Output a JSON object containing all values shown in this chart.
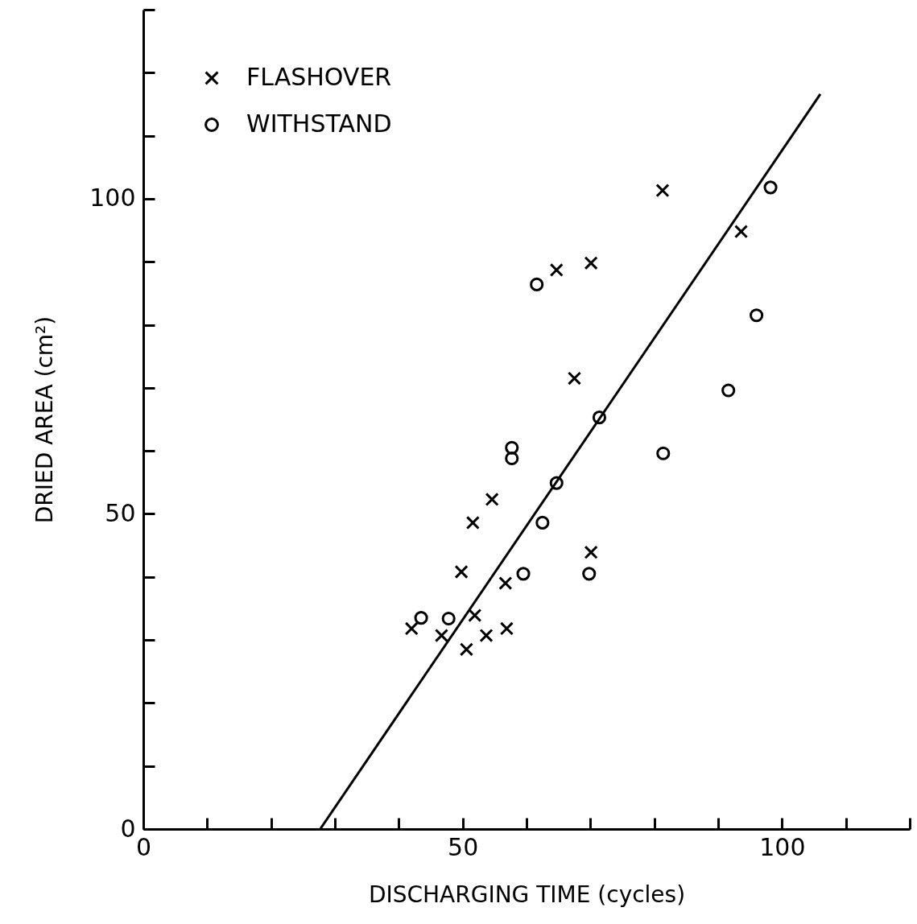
{
  "chart_data": {
    "type": "scatter",
    "xlabel": "DISCHARGING TIME (cycles)",
    "ylabel": "DRIED AREA (cm²)",
    "xlim": [
      0,
      120
    ],
    "ylim": [
      0,
      130
    ],
    "xticks": [
      0,
      {
        "value": 10,
        "label": null
      },
      {
        "value": 20,
        "label": null
      },
      {
        "value": 30,
        "label": null
      },
      {
        "value": 40,
        "label": null
      },
      50,
      {
        "value": 60,
        "label": null
      },
      {
        "value": 70,
        "label": null
      },
      {
        "value": 80,
        "label": null
      },
      {
        "value": 90,
        "label": null
      },
      100,
      {
        "value": 110,
        "label": null
      },
      {
        "value": 120,
        "label": null
      }
    ],
    "yticks": [
      0,
      {
        "value": 10,
        "label": null
      },
      {
        "value": 20,
        "label": null
      },
      {
        "value": 30,
        "label": null
      },
      {
        "value": 40,
        "label": null
      },
      50,
      {
        "value": 60,
        "label": null
      },
      {
        "value": 70,
        "label": null
      },
      {
        "value": 80,
        "label": null
      },
      {
        "value": 90,
        "label": null
      },
      100,
      {
        "value": 110,
        "label": null
      },
      {
        "value": 120,
        "label": null
      },
      {
        "value": 130,
        "label": null
      }
    ],
    "grid": false,
    "legend": "top left",
    "series": [
      {
        "name": "FLASHOVER",
        "color": "#000000",
        "marker": "cross",
        "x": [
          42.0,
          46.7,
          50.6,
          53.7,
          56.9,
          51.9,
          49.8,
          56.7,
          51.6,
          54.6,
          70.1,
          67.5,
          64.7,
          70.1,
          81.3,
          93.6
        ],
        "values": [
          31.8,
          30.7,
          28.5,
          30.7,
          31.8,
          33.9,
          40.8,
          39.0,
          48.6,
          52.3,
          43.9,
          71.5,
          88.7,
          89.8,
          101.3,
          94.8
        ]
      },
      {
        "name": "WITHSTAND",
        "color": "#000000",
        "marker": "circle",
        "x": [
          43.5,
          47.8,
          59.5,
          62.5,
          64.7,
          71.4,
          61.6,
          69.8,
          81.4,
          91.6,
          96.0,
          98.2,
          57.7,
          57.7
        ],
        "values": [
          33.5,
          33.4,
          40.5,
          48.6,
          54.9,
          65.3,
          86.4,
          40.5,
          59.6,
          69.6,
          81.5,
          101.8,
          60.5,
          58.8
        ]
      },
      {
        "type": "line",
        "color": "#000000",
        "line_style": "solid",
        "x": [
          27.7,
          106.0
        ],
        "values": [
          0,
          116.6
        ]
      }
    ]
  }
}
